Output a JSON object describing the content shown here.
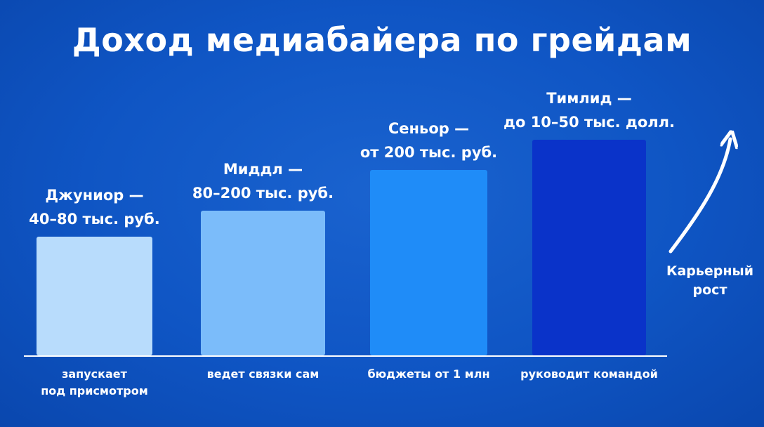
{
  "chart_data": {
    "type": "bar",
    "title": "Доход медиабайера по грейдам",
    "categories": [
      [
        "запускает",
        "под присмотром"
      ],
      [
        "ведет связки сам"
      ],
      [
        "бюджеты от 1 млн"
      ],
      [
        "руководит командой"
      ]
    ],
    "bar_labels": [
      [
        "Джуниор —",
        "40–80 тыс. руб."
      ],
      [
        "Миддл —",
        "80–200 тыс. руб."
      ],
      [
        "Сеньор —",
        "от 200 тыс. руб."
      ],
      [
        "Тимлид —",
        "до 10–50 тыс. долл."
      ]
    ],
    "values": [
      1,
      2,
      3,
      4
    ],
    "colors": [
      "#b8dcfc",
      "#7bbcfa",
      "#1f8cf8",
      "#0a33c9"
    ],
    "annotation": [
      "Карьерный",
      "рост"
    ],
    "xlabel": "",
    "ylabel": ""
  }
}
